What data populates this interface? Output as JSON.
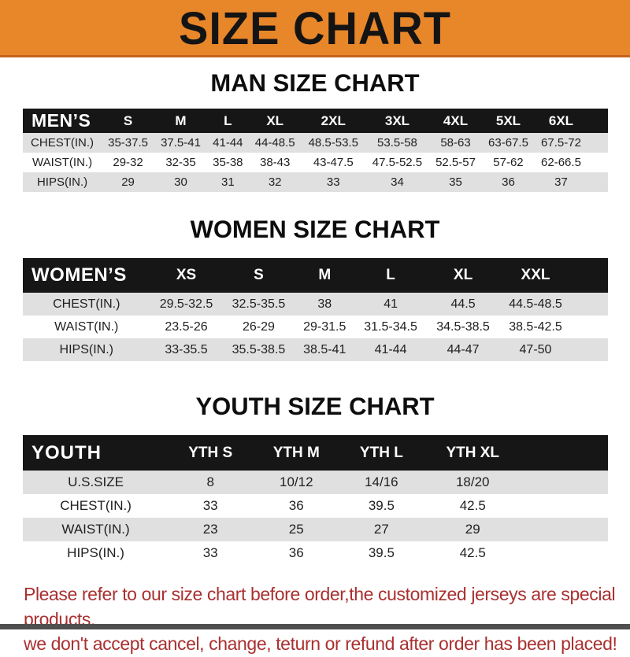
{
  "banner": {
    "title": "SIZE CHART"
  },
  "colors": {
    "banner_orange": "#E8862A",
    "banner_border": "#C3641C",
    "table_header_black": "#161616",
    "row_gray": "#E0E0E0",
    "row_white": "#FFFFFF",
    "note_red": "#A93030",
    "bottom_bar_gray": "#4F4F4F"
  },
  "men": {
    "heading": "MAN SIZE CHART",
    "header": [
      "MEN’S",
      "S",
      "M",
      "L",
      "XL",
      "2XL",
      "3XL",
      "4XL",
      "5XL",
      "6XL"
    ],
    "rows": [
      {
        "label": "CHEST(IN.)",
        "values": [
          "35-37.5",
          "37.5-41",
          "41-44",
          "44-48.5",
          "48.5-53.5",
          "53.5-58",
          "58-63",
          "63-67.5",
          "67.5-72"
        ]
      },
      {
        "label": "WAIST(IN.)",
        "values": [
          "29-32",
          "32-35",
          "35-38",
          "38-43",
          "43-47.5",
          "47.5-52.5",
          "52.5-57",
          "57-62",
          "62-66.5"
        ]
      },
      {
        "label": "HIPS(IN.)",
        "values": [
          "29",
          "30",
          "31",
          "32",
          "33",
          "34",
          "35",
          "36",
          "37"
        ]
      }
    ]
  },
  "women": {
    "heading": "WOMEN SIZE CHART",
    "header": [
      "WOMEN’S",
      "XS",
      "S",
      "M",
      "L",
      "XL",
      "XXL"
    ],
    "rows": [
      {
        "label": "CHEST(IN.)",
        "values": [
          "29.5-32.5",
          "32.5-35.5",
          "38",
          "41",
          "44.5",
          "44.5-48.5"
        ]
      },
      {
        "label": "WAIST(IN.)",
        "values": [
          "23.5-26",
          "26-29",
          "29-31.5",
          "31.5-34.5",
          "34.5-38.5",
          "38.5-42.5"
        ]
      },
      {
        "label": "HIPS(IN.)",
        "values": [
          "33-35.5",
          "35.5-38.5",
          "38.5-41",
          "41-44",
          "44-47",
          "47-50"
        ]
      }
    ]
  },
  "youth": {
    "heading": "YOUTH SIZE CHART",
    "header": [
      "YOUTH",
      "YTH S",
      "YTH M",
      "YTH L",
      "YTH XL"
    ],
    "rows": [
      {
        "label": "U.S.SIZE",
        "values": [
          "8",
          "10/12",
          "14/16",
          "18/20"
        ]
      },
      {
        "label": "CHEST(IN.)",
        "values": [
          "33",
          "36",
          "39.5",
          "42.5"
        ]
      },
      {
        "label": "WAIST(IN.)",
        "values": [
          "23",
          "25",
          "27",
          "29"
        ]
      },
      {
        "label": "HIPS(IN.)",
        "values": [
          "33",
          "36",
          "39.5",
          "42.5"
        ]
      }
    ]
  },
  "note": {
    "line1": "Please refer to our size chart before order,the customized jerseys are special products,",
    "line2": "we don't accept cancel, change, teturn or refund after order has been placed!"
  }
}
